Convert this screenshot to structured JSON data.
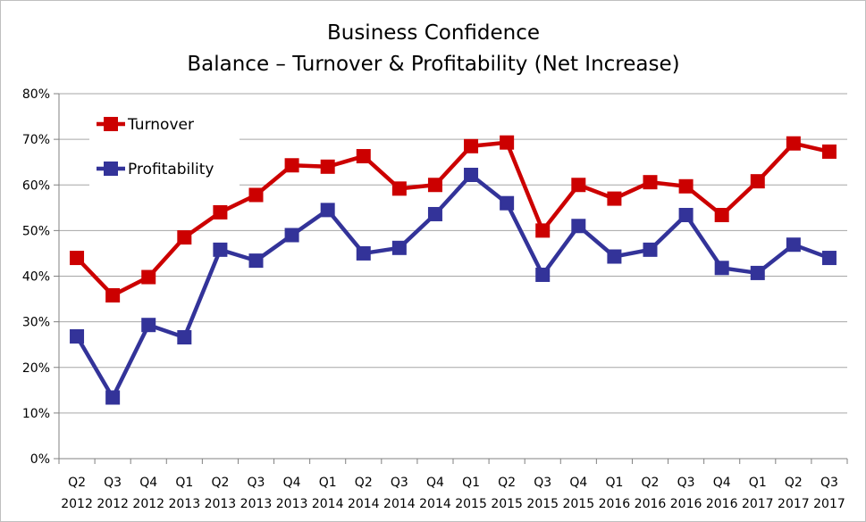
{
  "chart_data": {
    "type": "line",
    "title": "Business Confidence",
    "subtitle": "Balance – Turnover & Profitability (Net Increase)",
    "xlabel": "",
    "ylabel": "",
    "ylim": [
      0,
      80
    ],
    "y_ticks": [
      "0%",
      "10%",
      "20%",
      "30%",
      "40%",
      "50%",
      "60%",
      "70%",
      "80%"
    ],
    "grid": true,
    "legend_position": "top-left",
    "categories": [
      [
        "Q2",
        "2012"
      ],
      [
        "Q3",
        "2012"
      ],
      [
        "Q4",
        "2012"
      ],
      [
        "Q1",
        "2013"
      ],
      [
        "Q2",
        "2013"
      ],
      [
        "Q3",
        "2013"
      ],
      [
        "Q4",
        "2013"
      ],
      [
        "Q1",
        "2014"
      ],
      [
        "Q2",
        "2014"
      ],
      [
        "Q3",
        "2014"
      ],
      [
        "Q4",
        "2014"
      ],
      [
        "Q1",
        "2015"
      ],
      [
        "Q2",
        "2015"
      ],
      [
        "Q3",
        "2015"
      ],
      [
        "Q4",
        "2015"
      ],
      [
        "Q1",
        "2016"
      ],
      [
        "Q2",
        "2016"
      ],
      [
        "Q3",
        "2016"
      ],
      [
        "Q4",
        "2016"
      ],
      [
        "Q1",
        "2017"
      ],
      [
        "Q2",
        "2017"
      ],
      [
        "Q3",
        "2017"
      ]
    ],
    "series": [
      {
        "name": "Turnover",
        "color": "#cc0000",
        "values": [
          44,
          35.8,
          39.8,
          48.5,
          54,
          57.8,
          64.3,
          64,
          66.3,
          59.2,
          60,
          68.5,
          69.3,
          50,
          60,
          57,
          60.6,
          59.7,
          53.4,
          60.8,
          69.1,
          67.3
        ]
      },
      {
        "name": "Profitability",
        "color": "#333399",
        "values": [
          26.8,
          13.4,
          29.3,
          26.6,
          45.8,
          43.4,
          49,
          54.5,
          45,
          46.2,
          53.6,
          62.2,
          56,
          40.3,
          51,
          44.3,
          45.8,
          53.4,
          41.8,
          40.7,
          46.9,
          44
        ]
      }
    ]
  }
}
